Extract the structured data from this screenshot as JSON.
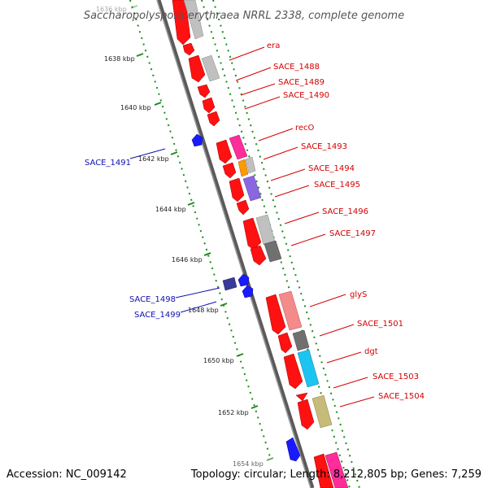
{
  "title": "Saccharopolyspora erythraea NRRL 2338, complete genome",
  "footer": {
    "accession": "Accession: NC_009142",
    "topology": "Topology: circular; Length: 8,212,805 bp; Genes: 7,259"
  },
  "colors": {
    "red": "#ff1111",
    "gray": "#c0c0c0",
    "dark_gray": "#707070",
    "magenta": "#ff2d9a",
    "orange": "#ff9900",
    "purple": "#8a66e0",
    "salmon": "#f58a8a",
    "cyan": "#1ec4f0",
    "olive": "#c7bb7a",
    "blue": "#1a1aff",
    "navy": "#3a3a9a",
    "tick_green": "#1c8c1c",
    "label_red": "#d40000",
    "label_blue": "#1010b0"
  },
  "kbp_ticks": [
    "1636 kbp",
    "1638 kbp",
    "1640 kbp",
    "1642 kbp",
    "1644 kbp",
    "1646 kbp",
    "1648 kbp",
    "1650 kbp",
    "1652 kbp",
    "1654 kbp"
  ],
  "labels_right": [
    "era",
    "SACE_1488",
    "SACE_1489",
    "SACE_1490",
    "recO",
    "SACE_1493",
    "SACE_1494",
    "SACE_1495",
    "SACE_1496",
    "SACE_1497",
    "glyS",
    "SACE_1501",
    "dgt",
    "SACE_1503",
    "SACE_1504"
  ],
  "labels_left": [
    "SACE_1491",
    "SACE_1498",
    "SACE_1499"
  ]
}
